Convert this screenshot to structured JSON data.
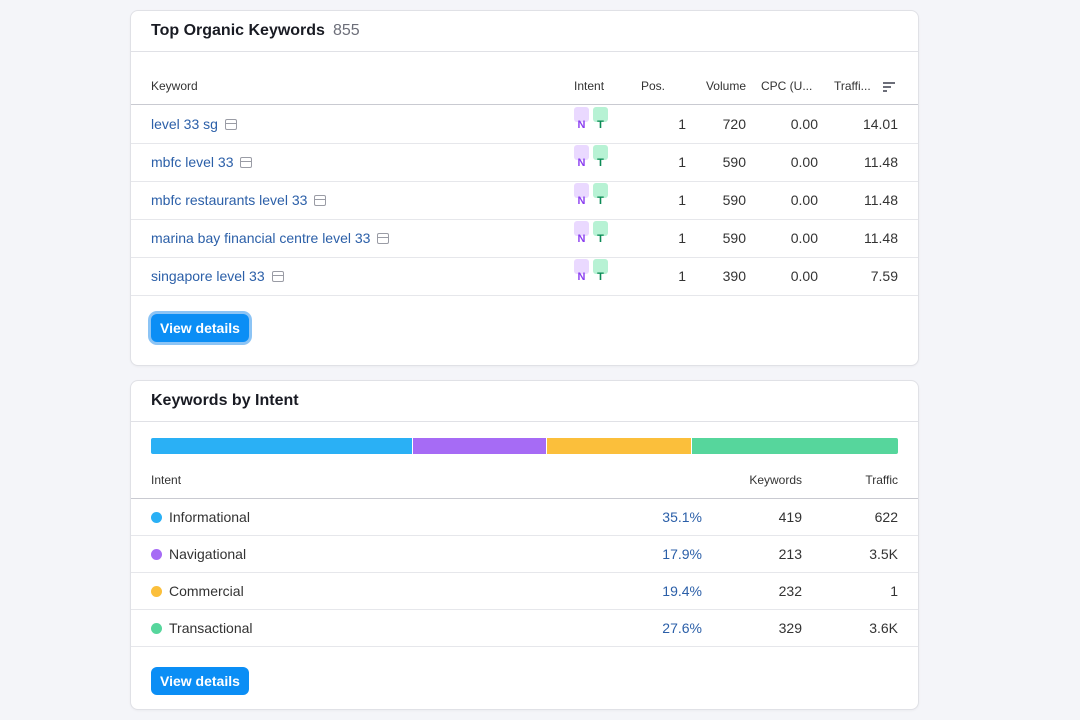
{
  "organic": {
    "title": "Top Organic Keywords",
    "count": "855",
    "columns": {
      "keyword": "Keyword",
      "intent": "Intent",
      "pos": "Pos.",
      "volume": "Volume",
      "cpc": "CPC (U...",
      "traffic": "Traffi..."
    },
    "rows": [
      {
        "keyword": "level 33 sg",
        "intents": [
          "N",
          "T"
        ],
        "pos": "1",
        "volume": "720",
        "cpc": "0.00",
        "traffic": "14.01"
      },
      {
        "keyword": "mbfc level 33",
        "intents": [
          "N",
          "T"
        ],
        "pos": "1",
        "volume": "590",
        "cpc": "0.00",
        "traffic": "11.48"
      },
      {
        "keyword": "mbfc restaurants level 33",
        "intents": [
          "N",
          "T"
        ],
        "pos": "1",
        "volume": "590",
        "cpc": "0.00",
        "traffic": "11.48"
      },
      {
        "keyword": "marina bay financial centre level 33",
        "intents": [
          "N",
          "T"
        ],
        "pos": "1",
        "volume": "590",
        "cpc": "0.00",
        "traffic": "11.48"
      },
      {
        "keyword": "singapore level 33",
        "intents": [
          "N",
          "T"
        ],
        "pos": "1",
        "volume": "390",
        "cpc": "0.00",
        "traffic": "7.59"
      }
    ],
    "button_label": "View details"
  },
  "intent": {
    "title": "Keywords by Intent",
    "columns": {
      "intent": "Intent",
      "keywords": "Keywords",
      "traffic": "Traffic"
    },
    "rows": [
      {
        "name": "Informational",
        "pct": "35.1%",
        "share": 0.351,
        "keywords": "419",
        "traffic": "622",
        "color": "#2ab0f5"
      },
      {
        "name": "Navigational",
        "pct": "17.9%",
        "share": 0.179,
        "keywords": "213",
        "traffic": "3.5K",
        "color": "#a66bf5"
      },
      {
        "name": "Commercial",
        "pct": "19.4%",
        "share": 0.194,
        "keywords": "232",
        "traffic": "1",
        "color": "#fbbf3b"
      },
      {
        "name": "Transactional",
        "pct": "27.6%",
        "share": 0.276,
        "keywords": "329",
        "traffic": "3.6K",
        "color": "#56d69c"
      }
    ],
    "button_label": "View details"
  }
}
